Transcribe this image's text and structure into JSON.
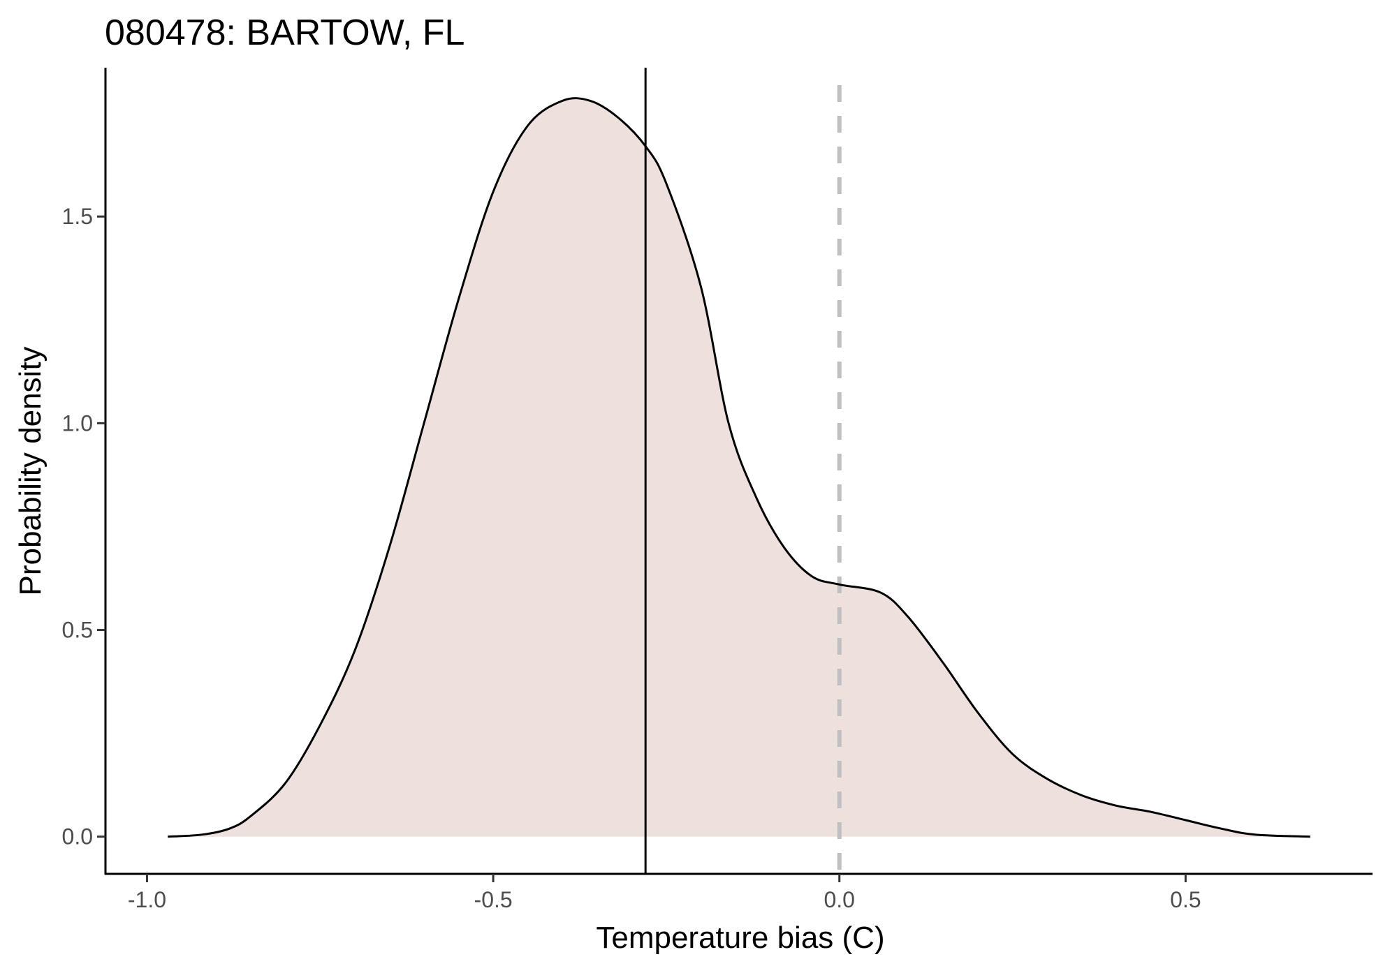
{
  "chart_data": {
    "type": "area",
    "title": "080478: BARTOW, FL",
    "xlabel": "Temperature bias (C)",
    "ylabel": "Probability density",
    "xlim": [
      -1.06,
      0.77
    ],
    "ylim": [
      -0.09,
      1.86
    ],
    "x_ticks": [
      -1.0,
      -0.5,
      0.0,
      0.5
    ],
    "x_tick_labels": [
      "-1.0",
      "-0.5",
      "0.0",
      "0.5"
    ],
    "y_ticks": [
      0.0,
      0.5,
      1.0,
      1.5
    ],
    "y_tick_labels": [
      "0.0",
      "0.5",
      "1.0",
      "1.5"
    ],
    "grid": false,
    "legend": "none",
    "fill_color": "#ede0dd",
    "line_color": "#000000",
    "mean_line": {
      "x": -0.28,
      "color": "#000000",
      "style": "solid"
    },
    "zero_line": {
      "x": 0.0,
      "color": "#c0c0c0",
      "style": "dashed"
    },
    "series": [
      {
        "x": [
          -0.97,
          -0.92,
          -0.88,
          -0.85,
          -0.8,
          -0.75,
          -0.7,
          -0.65,
          -0.6,
          -0.55,
          -0.5,
          -0.45,
          -0.4,
          -0.36,
          -0.32,
          -0.28,
          -0.25,
          -0.2,
          -0.16,
          -0.12,
          -0.08,
          -0.04,
          0.0,
          0.06,
          0.1,
          0.15,
          0.2,
          0.25,
          0.3,
          0.35,
          0.4,
          0.45,
          0.5,
          0.55,
          0.6,
          0.68
        ],
        "y": [
          0.0,
          0.005,
          0.02,
          0.05,
          0.13,
          0.27,
          0.45,
          0.7,
          1.0,
          1.3,
          1.56,
          1.72,
          1.78,
          1.78,
          1.74,
          1.67,
          1.58,
          1.33,
          1.0,
          0.82,
          0.7,
          0.63,
          0.61,
          0.59,
          0.53,
          0.42,
          0.3,
          0.2,
          0.14,
          0.1,
          0.075,
          0.06,
          0.04,
          0.02,
          0.005,
          0.0
        ]
      }
    ]
  }
}
